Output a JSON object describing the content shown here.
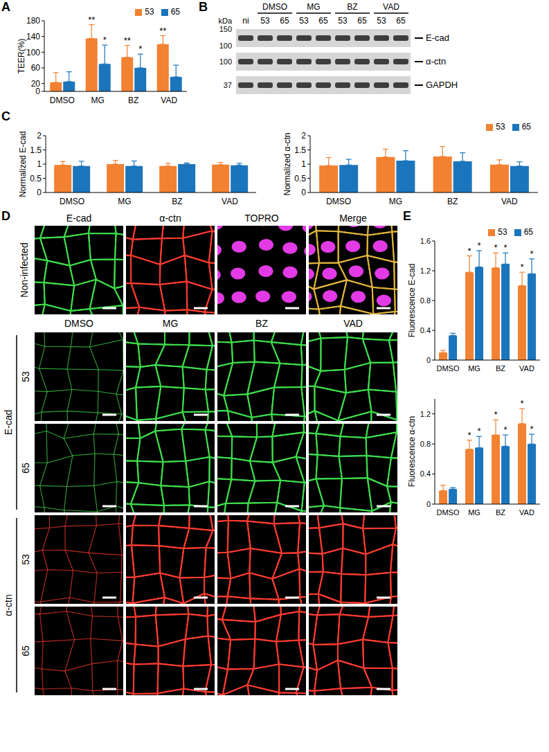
{
  "chart_data": [
    {
      "panel": "A",
      "type": "bar",
      "y_label": "TEER(%)",
      "categories": [
        "DMSO",
        "MG",
        "BZ",
        "VAD"
      ],
      "ylim": [
        0,
        180
      ],
      "yticks": [
        0,
        20,
        60,
        100,
        140,
        180
      ],
      "grid": false,
      "legend": "top-right",
      "series": [
        {
          "name": "53",
          "color": "#f28131",
          "values": [
            23,
            135,
            87,
            120
          ],
          "errors": [
            25,
            35,
            30,
            22
          ],
          "significance": [
            null,
            "**",
            "**",
            "**"
          ]
        },
        {
          "name": "65",
          "color": "#1b75bc",
          "values": [
            25,
            70,
            60,
            37
          ],
          "errors": [
            25,
            48,
            35,
            30
          ],
          "significance": [
            null,
            "*",
            "*",
            null
          ]
        }
      ]
    },
    {
      "panel": "C",
      "type": "bar",
      "y_label": "Normalized E-cad",
      "categories": [
        "DMSO",
        "MG",
        "BZ",
        "VAD"
      ],
      "ylim": [
        0,
        2
      ],
      "yticks": [
        0,
        0.5,
        1,
        1.5,
        2
      ],
      "grid": false,
      "series": [
        {
          "name": "53",
          "color": "#f28131",
          "values": [
            0.97,
            1.0,
            0.93,
            0.98
          ],
          "errors": [
            0.12,
            0.13,
            0.1,
            0.08
          ]
        },
        {
          "name": "65",
          "color": "#1b75bc",
          "values": [
            0.93,
            0.93,
            1.0,
            0.96
          ],
          "errors": [
            0.17,
            0.18,
            0.04,
            0.07
          ]
        }
      ]
    },
    {
      "type": "bar",
      "y_label": "Normalized α-ctn",
      "categories": [
        "DMSO",
        "MG",
        "BZ",
        "VAD"
      ],
      "ylim": [
        0,
        2
      ],
      "yticks": [
        0,
        0.5,
        1,
        1.5,
        2
      ],
      "grid": false,
      "legend": "top-right",
      "series": [
        {
          "name": "53",
          "color": "#f28131",
          "values": [
            0.95,
            1.25,
            1.27,
            0.98
          ],
          "errors": [
            0.28,
            0.28,
            0.35,
            0.17
          ]
        },
        {
          "name": "65",
          "color": "#1b75bc",
          "values": [
            0.97,
            1.12,
            1.1,
            0.93
          ],
          "errors": [
            0.2,
            0.35,
            0.3,
            0.15
          ]
        }
      ]
    },
    {
      "panel": "E",
      "type": "bar",
      "y_label": "Fluorescence E-cad",
      "categories": [
        "DMSO",
        "MG",
        "BZ",
        "VAD"
      ],
      "ylim": [
        0,
        1.6
      ],
      "yticks": [
        0,
        0.4,
        0.8,
        1.2,
        1.6
      ],
      "grid": false,
      "legend": "top-right",
      "series": [
        {
          "name": "53",
          "color": "#f28131",
          "values": [
            0.1,
            1.18,
            1.24,
            1.0
          ],
          "errors": [
            0.03,
            0.22,
            0.2,
            0.18
          ],
          "significance": [
            null,
            "*",
            "*",
            "*"
          ]
        },
        {
          "name": "65",
          "color": "#1b75bc",
          "values": [
            0.33,
            1.25,
            1.29,
            1.16
          ],
          "errors": [
            0.03,
            0.22,
            0.15,
            0.2
          ],
          "significance": [
            null,
            "*",
            "*",
            "*"
          ]
        }
      ]
    },
    {
      "type": "bar",
      "y_label": "Fluorescence α-ctn",
      "categories": [
        "DMSO",
        "MG",
        "BZ",
        "VAD"
      ],
      "ylim": [
        0,
        1.4
      ],
      "yticks": [
        0,
        0.4,
        0.8,
        1.2
      ],
      "grid": false,
      "series": [
        {
          "name": "53",
          "color": "#f28131",
          "values": [
            0.18,
            0.73,
            0.92,
            1.07
          ],
          "errors": [
            0.07,
            0.12,
            0.2,
            0.2
          ],
          "significance": [
            null,
            "*",
            "*",
            "*"
          ]
        },
        {
          "name": "65",
          "color": "#1b75bc",
          "values": [
            0.2,
            0.75,
            0.77,
            0.8
          ],
          "errors": [
            0.02,
            0.15,
            0.15,
            0.13
          ],
          "significance": [
            null,
            "*",
            "*",
            "*"
          ]
        }
      ]
    }
  ],
  "blot": {
    "panel": "B",
    "unit": "kDa",
    "lanes": [
      {
        "label": "ni",
        "group": null
      },
      {
        "label": "53",
        "group": "DMSO"
      },
      {
        "label": "65",
        "group": "DMSO"
      },
      {
        "label": "53",
        "group": "MG"
      },
      {
        "label": "65",
        "group": "MG"
      },
      {
        "label": "53",
        "group": "BZ"
      },
      {
        "label": "65",
        "group": "BZ"
      },
      {
        "label": "53",
        "group": "VAD"
      },
      {
        "label": "65",
        "group": "VAD"
      }
    ],
    "rows": [
      {
        "name": "E-cad",
        "markers": [
          150,
          100
        ]
      },
      {
        "name": "α-ctn",
        "markers": [
          100
        ]
      },
      {
        "name": "GAPDH",
        "markers": [
          37
        ]
      }
    ]
  },
  "images": {
    "panel": "D",
    "reference": {
      "label": "Non-infected",
      "channels": [
        "E-cad",
        "α-ctn",
        "TOPRO",
        "Merge"
      ]
    },
    "conditions": [
      "DMSO",
      "MG",
      "BZ",
      "VAD"
    ],
    "rows": [
      {
        "stain": "E-cad",
        "strain": "53"
      },
      {
        "stain": "E-cad",
        "strain": "65"
      },
      {
        "stain": "α-ctn",
        "strain": "53"
      },
      {
        "stain": "α-ctn",
        "strain": "65"
      }
    ]
  }
}
